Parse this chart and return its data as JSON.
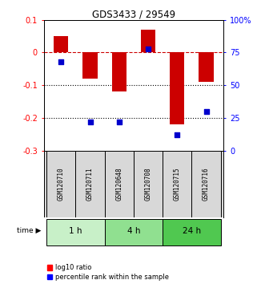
{
  "title": "GDS3433 / 29549",
  "samples": [
    "GSM120710",
    "GSM120711",
    "GSM120648",
    "GSM120708",
    "GSM120715",
    "GSM120716"
  ],
  "log10_ratio": [
    0.05,
    -0.08,
    -0.12,
    0.07,
    -0.22,
    -0.09
  ],
  "percentile_rank": [
    68,
    22,
    22,
    78,
    12,
    30
  ],
  "time_groups": [
    {
      "label": "1 h",
      "cols": [
        0,
        1
      ],
      "color": "#c8f0c8"
    },
    {
      "label": "4 h",
      "cols": [
        2,
        3
      ],
      "color": "#90e090"
    },
    {
      "label": "24 h",
      "cols": [
        4,
        5
      ],
      "color": "#50c850"
    }
  ],
  "ylim_left": [
    -0.3,
    0.1
  ],
  "ylim_right": [
    0,
    100
  ],
  "bar_color": "#cc0000",
  "dot_color": "#0000cc",
  "dashed_line_color": "#cc0000",
  "dotted_line_color": "#000000",
  "background_color": "#ffffff",
  "bar_width": 0.5,
  "yticks_left": [
    0.1,
    0.0,
    -0.1,
    -0.2,
    -0.3
  ],
  "yticks_right": [
    100,
    75,
    50,
    25,
    0
  ],
  "ytick_labels_left": [
    "0.1",
    "0",
    "-0.1",
    "-0.2",
    "-0.3"
  ],
  "ytick_labels_right": [
    "100%",
    "75",
    "50",
    "25",
    "0"
  ],
  "sample_box_color": "#d8d8d8",
  "legend_red": "log10 ratio",
  "legend_blue": "percentile rank within the sample",
  "time_label": "time"
}
